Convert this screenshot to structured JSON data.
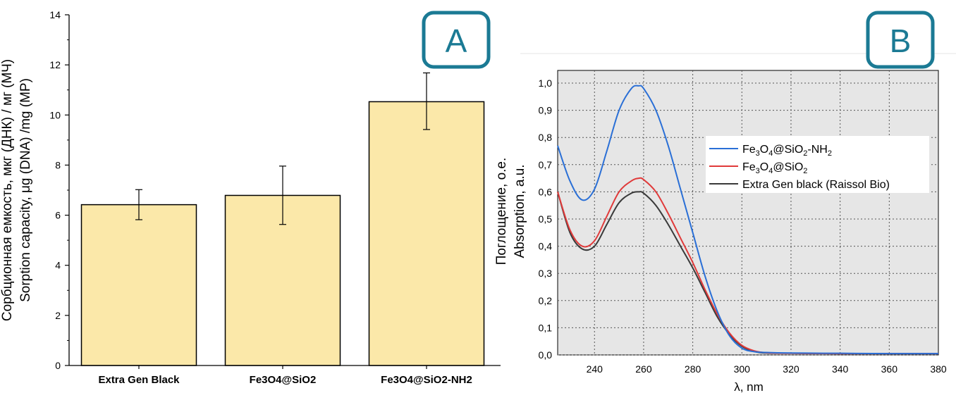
{
  "chart_data": [
    {
      "type": "bar",
      "panel_label": "A",
      "categories": [
        "Extra Gen Black",
        "Fe3O4@SiO2",
        "Fe3O4@SiO2-NH2"
      ],
      "values": [
        6.42,
        6.79,
        10.53
      ],
      "errors": [
        [
          5.82,
          7.02
        ],
        [
          5.63,
          7.96
        ],
        [
          9.42,
          11.68
        ]
      ],
      "ylabel_ru": "Сорбционная емкость, мкг (ДНК) / мг (МЧ)",
      "ylabel_en": "Sorption capacity, μg (DNA) /mg (MP)",
      "ylim": [
        0,
        14
      ],
      "yticks": [
        0,
        2,
        4,
        6,
        8,
        10,
        12,
        14
      ],
      "colors": {
        "bar": "#fbe8a9",
        "edge": "#000000"
      }
    },
    {
      "type": "line",
      "panel_label": "B",
      "xlabel": "λ, nm",
      "ylabel_ru": "Поглощение, о.е.",
      "ylabel_en": "Absorption, a.u.",
      "xlim": [
        225,
        380
      ],
      "ylim": [
        0,
        1.0
      ],
      "xticks": [
        "240",
        "260",
        "280",
        "300",
        "320",
        "340",
        "360",
        "380"
      ],
      "yticks": [
        "0,0",
        "0,1",
        "0,2",
        "0,3",
        "0,4",
        "0,5",
        "0,6",
        "0,7",
        "0,8",
        "0,9",
        "1,0"
      ],
      "grid": true,
      "legend_position": "upper-right",
      "series": [
        {
          "name": "Fe3O4@SiO2-NH2",
          "legend": {
            "p1": "Fe",
            "s1": "3",
            "p2": "O",
            "s2": "4",
            "p3": "@SiO",
            "s3": "2",
            "p4": "-NH",
            "s4": "2"
          },
          "color": "#2a6fd6",
          "x": [
            225,
            230,
            235,
            240,
            245,
            250,
            255,
            258,
            260,
            265,
            270,
            275,
            280,
            285,
            290,
            295,
            300,
            305,
            310,
            320,
            340,
            360,
            380
          ],
          "y": [
            0.77,
            0.64,
            0.57,
            0.61,
            0.75,
            0.9,
            0.98,
            0.99,
            0.98,
            0.9,
            0.77,
            0.61,
            0.45,
            0.29,
            0.16,
            0.07,
            0.025,
            0.012,
            0.009,
            0.007,
            0.006,
            0.005,
            0.005
          ]
        },
        {
          "name": "Fe3O4@SiO2",
          "legend": {
            "p1": "Fe",
            "s1": "3",
            "p2": "O",
            "s2": "4",
            "p3": "@SiO",
            "s3": "2",
            "p4": "",
            "s4": ""
          },
          "color": "#e03a3a",
          "x": [
            225,
            230,
            235,
            240,
            245,
            250,
            255,
            258,
            260,
            265,
            270,
            275,
            280,
            285,
            290,
            295,
            300,
            305,
            310,
            320,
            340,
            360,
            380
          ],
          "y": [
            0.6,
            0.46,
            0.4,
            0.42,
            0.51,
            0.6,
            0.64,
            0.65,
            0.645,
            0.6,
            0.52,
            0.43,
            0.34,
            0.24,
            0.15,
            0.08,
            0.035,
            0.015,
            0.008,
            0.006,
            0.005,
            0.005,
            0.005
          ]
        },
        {
          "name": "Extra Gen black (Raissol Bio)",
          "legend": {
            "p1": "Extra Gen black (Raissol Bio)",
            "s1": "",
            "p2": "",
            "s2": "",
            "p3": "",
            "s3": "",
            "p4": "",
            "s4": ""
          },
          "color": "#3a3a3a",
          "x": [
            225,
            230,
            235,
            240,
            245,
            250,
            255,
            258,
            260,
            265,
            270,
            275,
            280,
            285,
            290,
            295,
            300,
            305,
            310,
            320,
            340,
            360,
            380
          ],
          "y": [
            0.6,
            0.45,
            0.39,
            0.4,
            0.48,
            0.56,
            0.595,
            0.6,
            0.595,
            0.55,
            0.48,
            0.4,
            0.32,
            0.23,
            0.14,
            0.075,
            0.032,
            0.013,
            0.007,
            0.006,
            0.005,
            0.005,
            0.005
          ]
        }
      ]
    }
  ]
}
